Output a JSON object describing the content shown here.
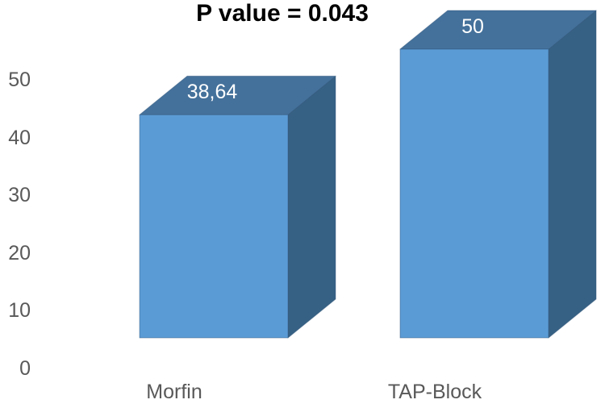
{
  "chart_data": {
    "type": "bar",
    "projection": "3d",
    "title": "P value = 0.043",
    "categories": [
      "Morfin",
      "TAP-Block"
    ],
    "values": [
      38.64,
      50
    ],
    "value_labels": [
      "38,64",
      "50"
    ],
    "yticks": [
      0,
      10,
      20,
      30,
      40,
      50
    ],
    "ylim": [
      0,
      50
    ],
    "grid": false,
    "legend": false,
    "colors": {
      "bar_front": "#5B9BD5",
      "bar_top": "#44719B",
      "bar_side": "#376184",
      "bar_edge": "#2E547A",
      "axis_text": "#595959",
      "data_label": "#FFFFFF",
      "title_text": "#000000",
      "background": "#FFFFFF"
    }
  }
}
